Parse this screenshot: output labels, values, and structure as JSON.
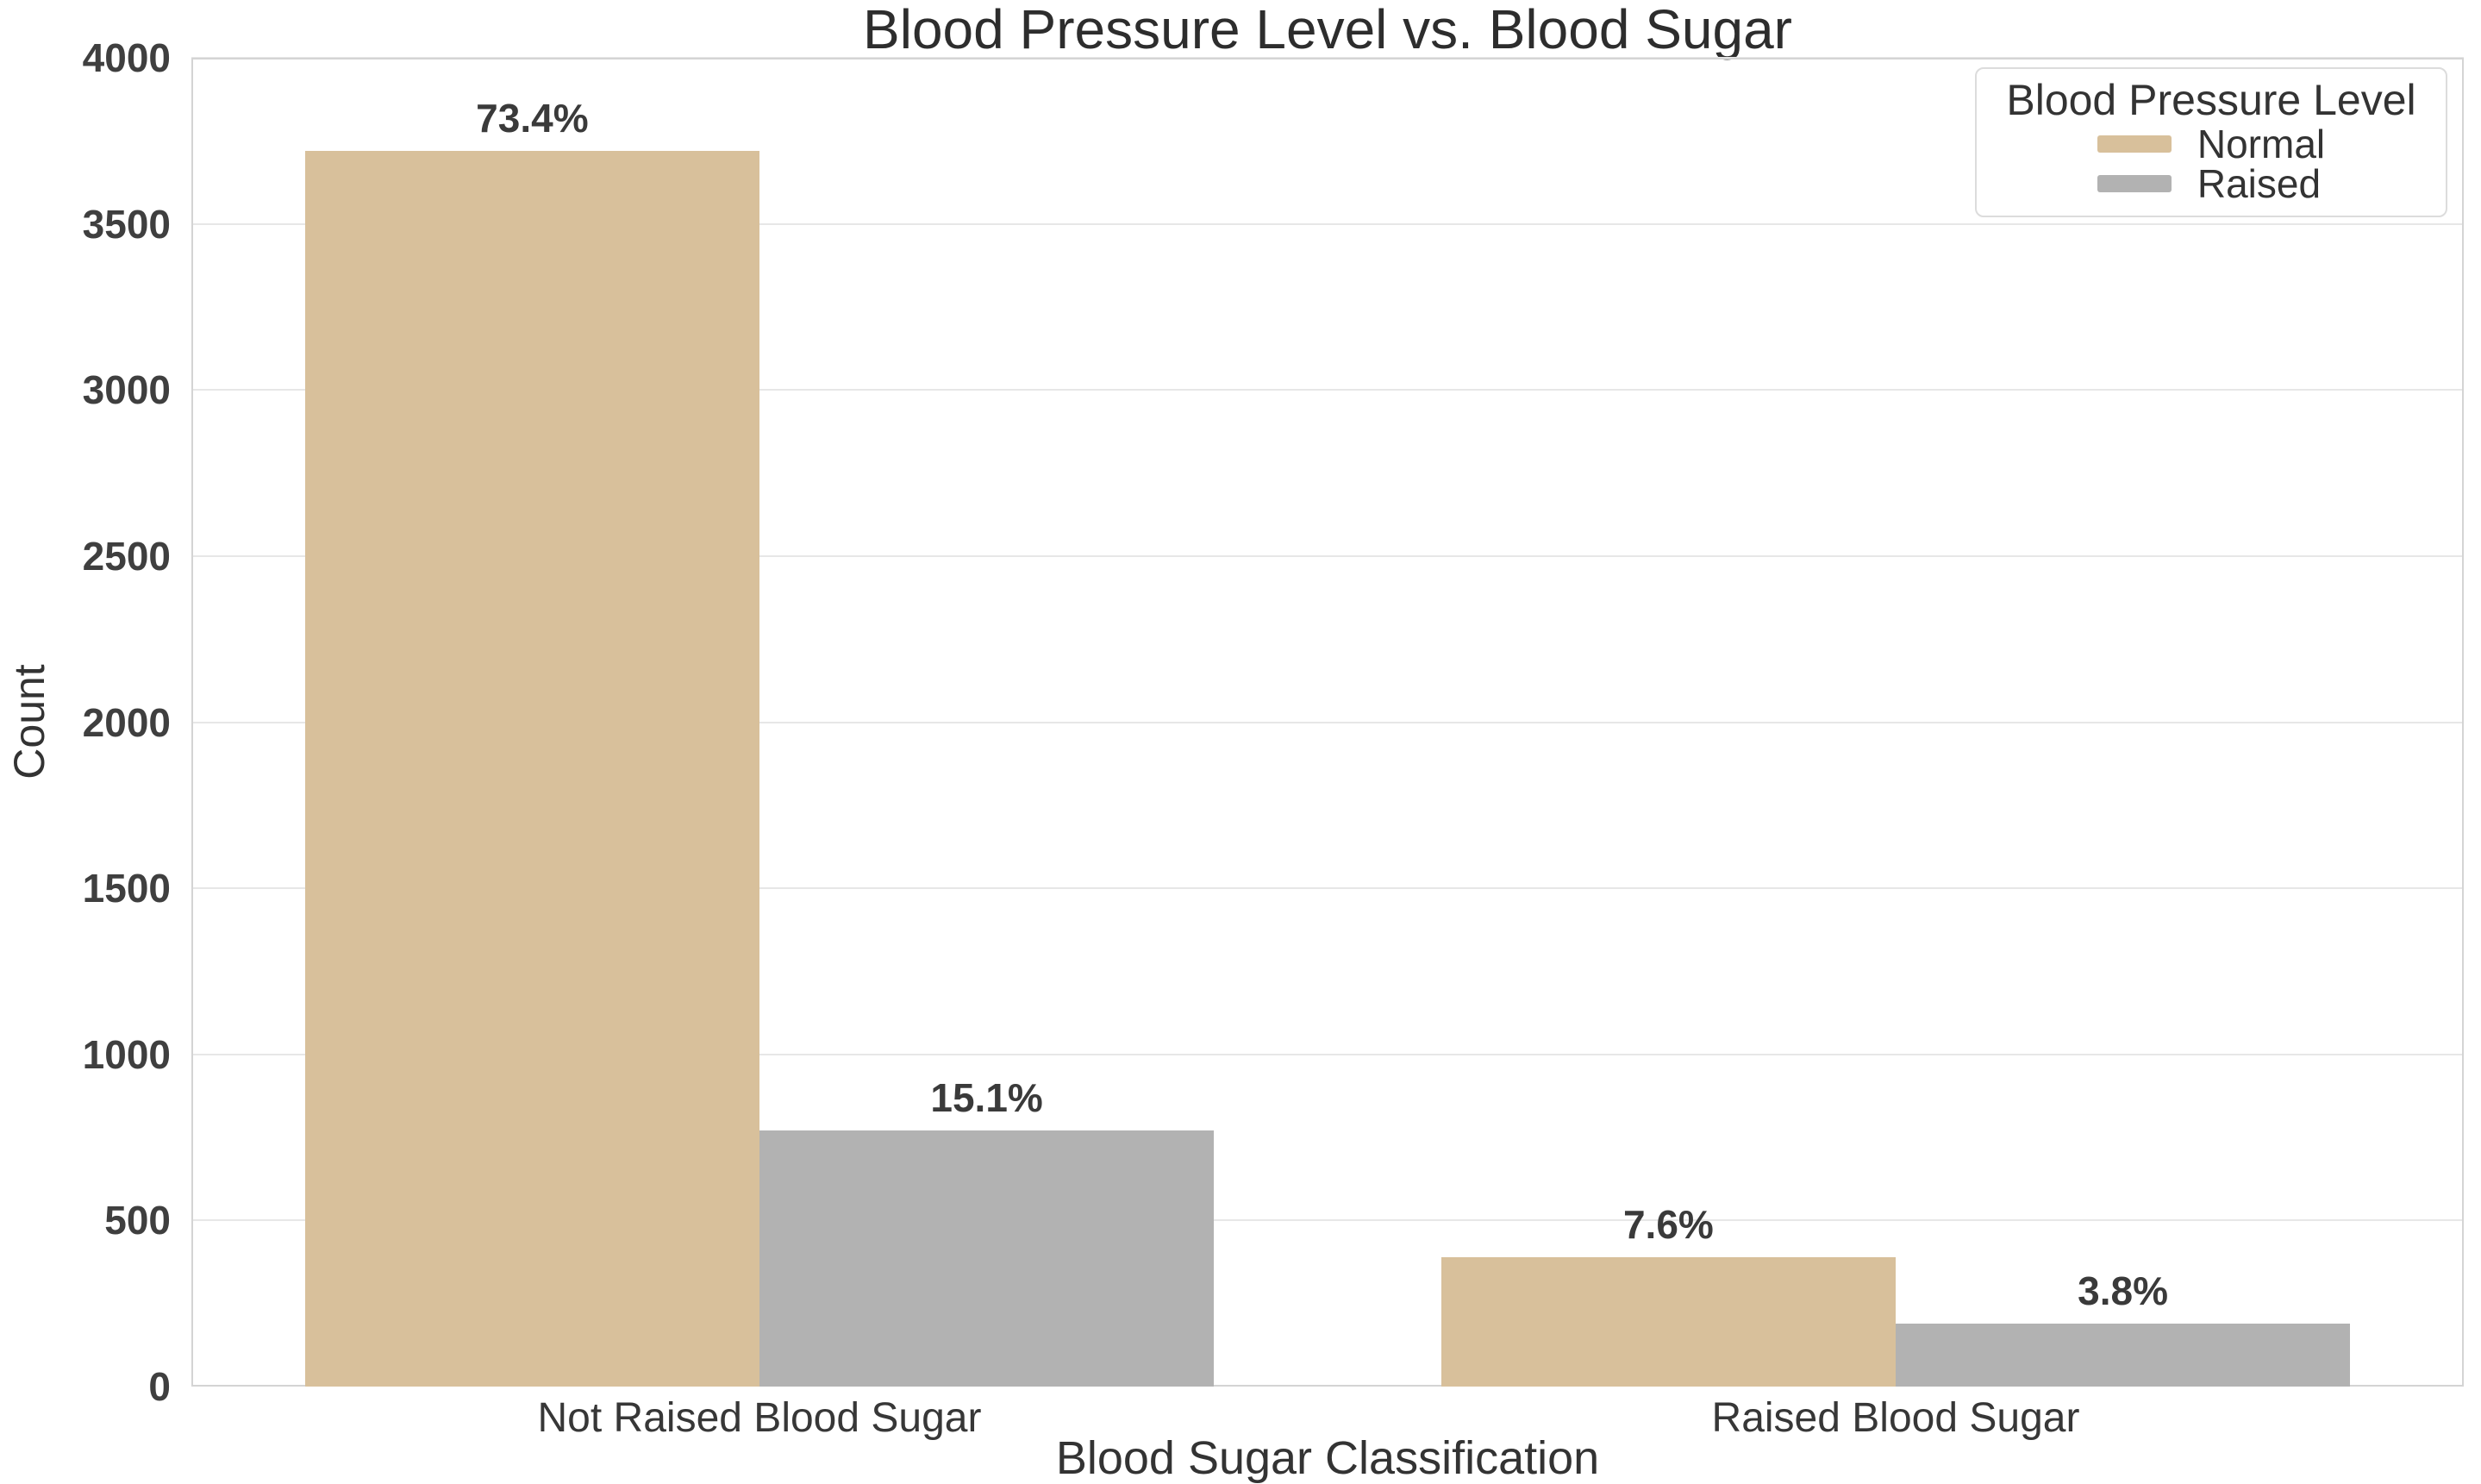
{
  "chart_data": {
    "type": "bar",
    "title": "Blood Pressure Level vs. Blood Sugar",
    "xlabel": "Blood Sugar Classification",
    "ylabel": "Count",
    "categories": [
      "Not Raised Blood Sugar",
      "Raised Blood Sugar"
    ],
    "series": [
      {
        "name": "Normal",
        "color": "#d8c09b",
        "values": [
          3720,
          390
        ],
        "bar_labels": [
          "73.4%",
          "7.6%"
        ]
      },
      {
        "name": "Raised",
        "color": "#b2b2b2",
        "values": [
          770,
          190
        ],
        "bar_labels": [
          "15.1%",
          "3.8%"
        ]
      }
    ],
    "ylim": [
      0,
      4000
    ],
    "yticks": [
      0,
      500,
      1000,
      1500,
      2000,
      2500,
      3000,
      3500,
      4000
    ],
    "grid": "horizontal",
    "legend": {
      "title": "Blood Pressure Level",
      "position": "upper-right",
      "entries": [
        {
          "label": "Normal",
          "color": "#d8c09b"
        },
        {
          "label": "Raised",
          "color": "#b2b2b2"
        }
      ]
    }
  },
  "style": {
    "bar_normal": "#d8c09b",
    "bar_raised": "#b2b2b2",
    "grid_color": "#e7e7e7",
    "spine_color": "#d4d4d4",
    "text_color": "#333333",
    "background": "#ffffff"
  }
}
